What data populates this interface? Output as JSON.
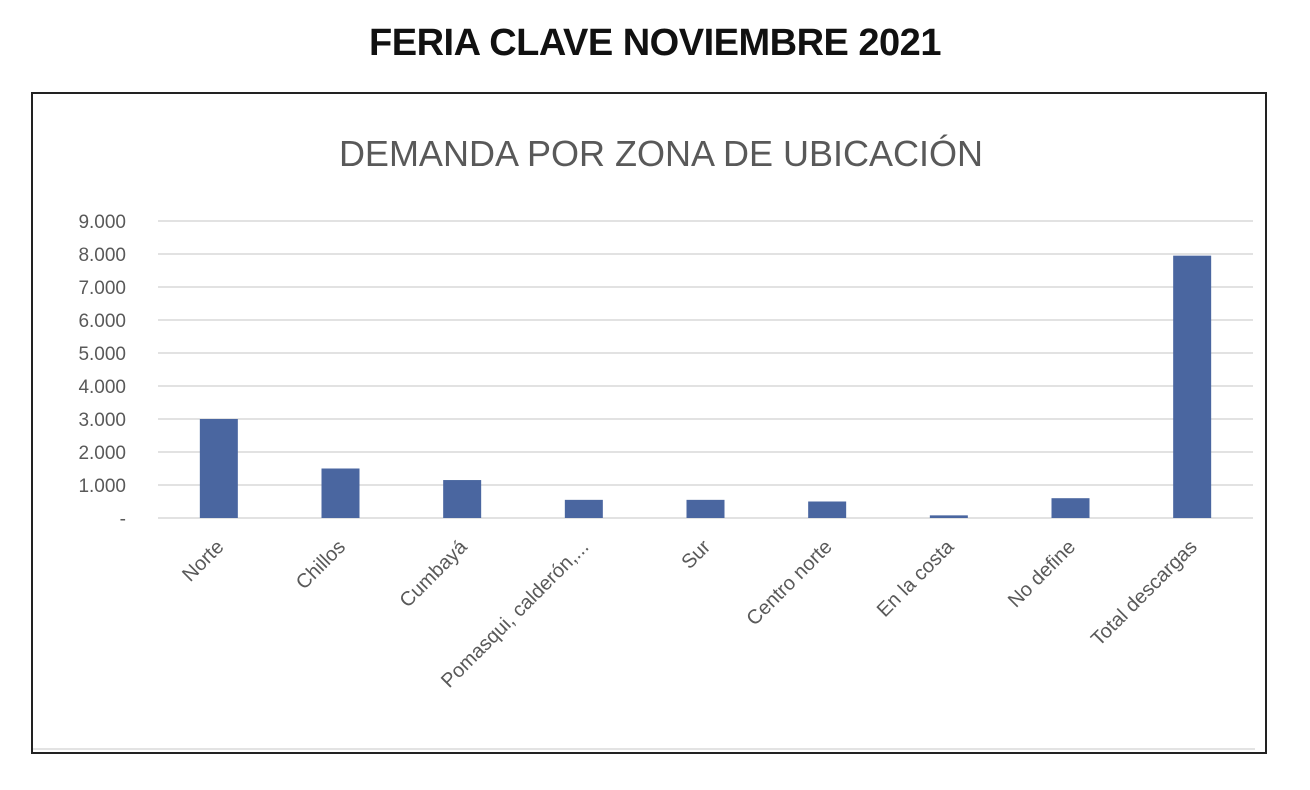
{
  "page": {
    "title": "FERIA CLAVE NOVIEMBRE 2021"
  },
  "chart_data": {
    "type": "bar",
    "title": "DEMANDA POR ZONA DE UBICACIÓN",
    "categories": [
      "Norte",
      "Chillos",
      "Cumbayá",
      "Pomasqui, calderón,...",
      "Sur",
      "Centro norte",
      "En la costa",
      "No define",
      "Total descargas"
    ],
    "values": [
      3000,
      1500,
      1150,
      550,
      550,
      500,
      80,
      600,
      7950
    ],
    "ylim": [
      0,
      9000
    ],
    "yticks": [
      0,
      1000,
      2000,
      3000,
      4000,
      5000,
      6000,
      7000,
      8000,
      9000
    ],
    "ytick_labels": [
      "-",
      "1.000",
      "2.000",
      "3.000",
      "4.000",
      "5.000",
      "6.000",
      "7.000",
      "8.000",
      "9.000"
    ],
    "xlabel": "",
    "ylabel": "",
    "grid": true,
    "legend": "none",
    "colors": {
      "bar": "#4a66a0",
      "grid": "#d9d9d9",
      "text": "#595959"
    }
  }
}
